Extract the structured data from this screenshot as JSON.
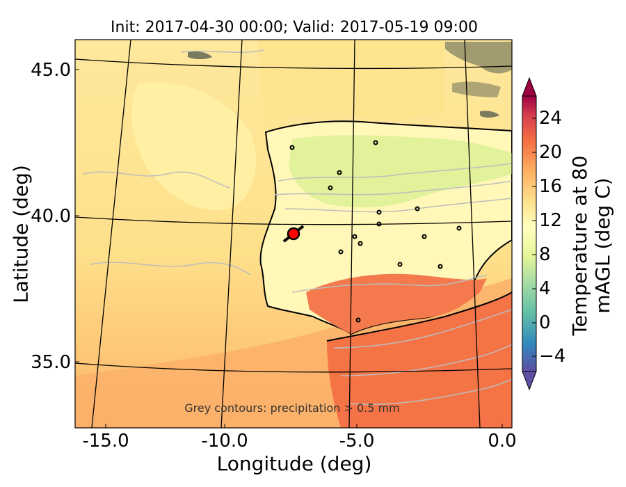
{
  "title": "Init: 2017-04-30 00:00; Valid: 2017-05-19 09:00",
  "axes": {
    "xlabel": "Longitude (deg)",
    "ylabel": "Latitude (deg)",
    "xticks": [
      "-15.0",
      "-10.0",
      "-5.0",
      "0.0"
    ],
    "yticks": [
      "45.0",
      "40.0",
      "35.0"
    ],
    "xlim": [
      -16.0,
      0.2
    ],
    "ylim": [
      32.8,
      46.0
    ]
  },
  "annotation": "Grey contours: precipitation > 0.5 mm",
  "colorbar": {
    "label": "Temperature at 80 mAGL (deg C)",
    "ticks": [
      "−4",
      "0",
      "4",
      "8",
      "12",
      "16",
      "20",
      "24"
    ],
    "range": [
      -6,
      27
    ],
    "colormap": "Spectral_r",
    "colors": [
      "#5e4fa2",
      "#3288bd",
      "#66c2a5",
      "#abdda4",
      "#e6f598",
      "#ffffbf",
      "#fee08b",
      "#fdae61",
      "#f46d43",
      "#d53e4f",
      "#9e0142"
    ]
  },
  "marker": {
    "location": {
      "lon": -7.6,
      "lat": 39.4
    },
    "color": "#ff0000"
  },
  "colors": {
    "sea_cool": "#fee79a",
    "sea_warm": "#fbb971",
    "land_cool": "#fff7b2",
    "land_green": "#e6f598",
    "land_hot": "#f47a4d",
    "precip_contour": "#bfbfbf"
  }
}
